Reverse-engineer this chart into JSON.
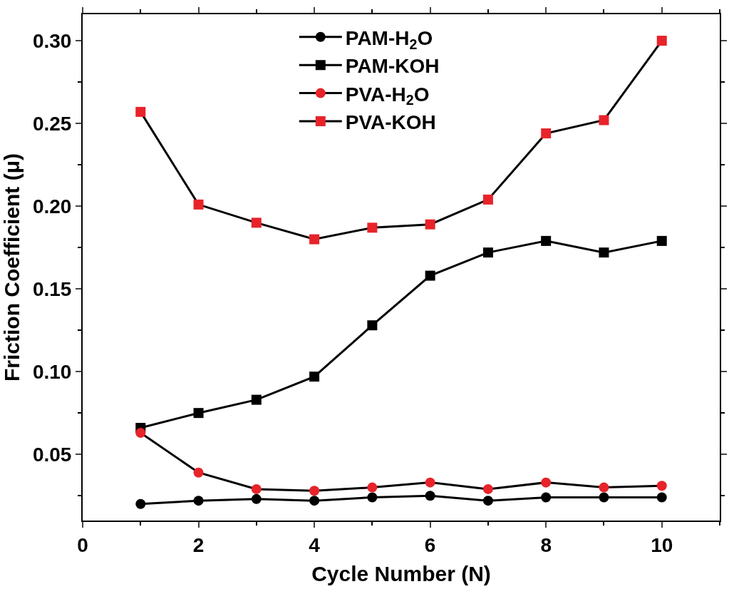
{
  "chart_data": {
    "type": "line",
    "xlabel": "Cycle Number (N)",
    "ylabel": "Friction Coefficient (μ)",
    "x": [
      1,
      2,
      3,
      4,
      5,
      6,
      7,
      8,
      9,
      10
    ],
    "series": [
      {
        "name": "PAM-H$_{2}$O",
        "color": "#000000",
        "marker": "circle",
        "values": [
          0.02,
          0.022,
          0.023,
          0.022,
          0.024,
          0.025,
          0.022,
          0.024,
          0.024,
          0.024
        ]
      },
      {
        "name": "PAM-KOH",
        "color": "#000000",
        "marker": "square",
        "values": [
          0.066,
          0.075,
          0.083,
          0.097,
          0.128,
          0.158,
          0.172,
          0.179,
          0.172,
          0.179
        ]
      },
      {
        "name": "PVA-H$_{2}$O",
        "color": "#e8232a",
        "marker": "circle",
        "values": [
          0.063,
          0.039,
          0.029,
          0.028,
          0.03,
          0.033,
          0.029,
          0.033,
          0.03,
          0.031
        ]
      },
      {
        "name": "PVA-KOH",
        "color": "#e8232a",
        "marker": "square",
        "values": [
          0.257,
          0.201,
          0.19,
          0.18,
          0.187,
          0.189,
          0.204,
          0.244,
          0.252,
          0.3
        ]
      }
    ],
    "xlim": [
      0,
      11
    ],
    "ylim": [
      0.01,
      0.316
    ],
    "xticks": [
      0,
      2,
      4,
      6,
      8,
      10
    ],
    "yticks": [
      {
        "value": 0.05,
        "label": "0.05"
      },
      {
        "value": 0.1,
        "label": "0.10"
      },
      {
        "value": 0.15,
        "label": "0.15"
      },
      {
        "value": 0.2,
        "label": "0.20"
      },
      {
        "value": 0.25,
        "label": "0.25"
      },
      {
        "value": 0.3,
        "label": "0.30"
      }
    ],
    "legend": "top",
    "line_style": "solid"
  }
}
